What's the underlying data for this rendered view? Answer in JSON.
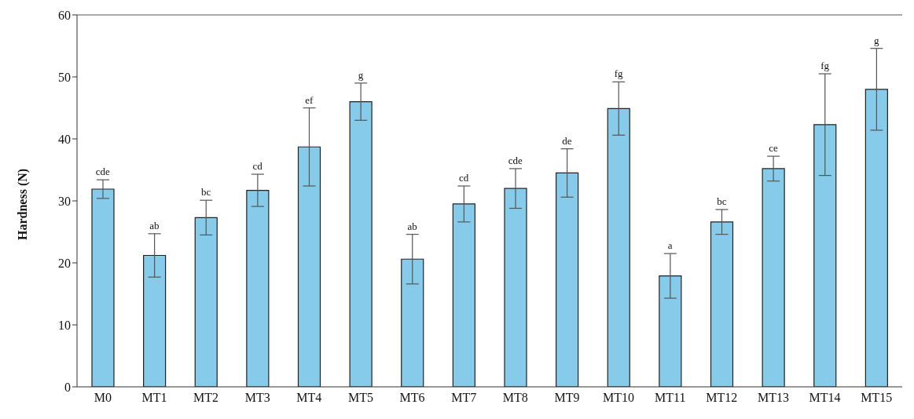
{
  "chart_data": {
    "type": "bar",
    "ylabel": "Hardness (N)",
    "categories": [
      "M0",
      "MT1",
      "MT2",
      "MT3",
      "MT4",
      "MT5",
      "MT6",
      "MT7",
      "MT8",
      "MT9",
      "MT10",
      "MT11",
      "MT12",
      "MT13",
      "MT14",
      "MT15"
    ],
    "values": [
      31.9,
      21.2,
      27.3,
      31.7,
      38.7,
      46.0,
      20.6,
      29.5,
      32.0,
      34.5,
      44.9,
      17.9,
      26.6,
      35.2,
      42.3,
      48.0
    ],
    "errors": [
      1.5,
      3.5,
      2.8,
      2.6,
      6.3,
      3.0,
      4.0,
      2.9,
      3.2,
      3.9,
      4.3,
      3.6,
      2.0,
      2.0,
      8.2,
      6.6
    ],
    "color": "#87cbea",
    "ylim": [
      0,
      60
    ],
    "yticks": [
      0,
      10,
      20,
      30,
      40,
      50,
      60
    ],
    "grid": false,
    "legend": false,
    "annotations": [
      {
        "text": "cde",
        "x": "M0",
        "y": 33.4
      },
      {
        "text": "ab",
        "x": "MT1",
        "y": 24.7
      },
      {
        "text": "bc",
        "x": "MT2",
        "y": 30.1
      },
      {
        "text": "cd",
        "x": "MT3",
        "y": 34.3
      },
      {
        "text": "ef",
        "x": "MT4",
        "y": 45.0
      },
      {
        "text": "g",
        "x": "MT5",
        "y": 49.0
      },
      {
        "text": "ab",
        "x": "MT6",
        "y": 24.6
      },
      {
        "text": "cd",
        "x": "MT7",
        "y": 32.4
      },
      {
        "text": "cde",
        "x": "MT8",
        "y": 35.2
      },
      {
        "text": "de",
        "x": "MT9",
        "y": 38.4
      },
      {
        "text": "fg",
        "x": "MT10",
        "y": 49.2
      },
      {
        "text": "a",
        "x": "MT11",
        "y": 21.5
      },
      {
        "text": "bc",
        "x": "MT12",
        "y": 28.6
      },
      {
        "text": "ce",
        "x": "MT13",
        "y": 37.2
      },
      {
        "text": "fg",
        "x": "MT14",
        "y": 50.5
      },
      {
        "text": "g",
        "x": "MT15",
        "y": 54.6
      }
    ]
  }
}
